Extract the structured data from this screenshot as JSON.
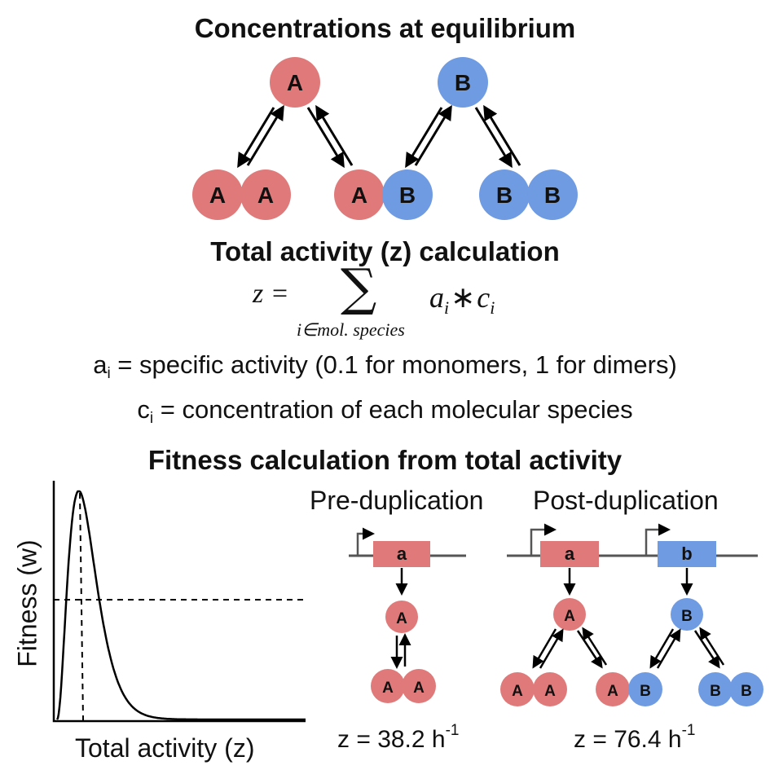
{
  "header_equilibrium": "Concentrations at equilibrium",
  "header_activity": "Total activity (z) calculation",
  "header_fitness": "Fitness calculation from total activity",
  "formula": {
    "lhs": "z =",
    "sum_symbol": "∑",
    "subscript": "i∈mol. species",
    "a": "a",
    "a_index": "i",
    "op": "∗",
    "c": "c",
    "c_index": "i"
  },
  "definitions": {
    "a_symbol": "a",
    "a_index": "i",
    "a_text": " = specific activity (0.1 for monomers, 1 for dimers)",
    "c_symbol": "c",
    "c_index": "i",
    "c_text": " = concentration of each molecular species"
  },
  "fitness_plot": {
    "ylabel": "Fitness (w)",
    "xlabel": "Total activity (z)"
  },
  "pre_duplication": {
    "label": "Pre-duplication",
    "gene": "a",
    "z_text": "z = 38.2 h",
    "z_exp": "-1"
  },
  "post_duplication": {
    "label": "Post-duplication",
    "gene_a": "a",
    "gene_b": "b",
    "z_text": "z = 76.4 h",
    "z_exp": "-1"
  },
  "species": {
    "A": "A",
    "B": "B"
  },
  "colors": {
    "A": "#e07a7a",
    "B": "#6f9be3",
    "line": "#000000",
    "gene_line": "#555555"
  }
}
